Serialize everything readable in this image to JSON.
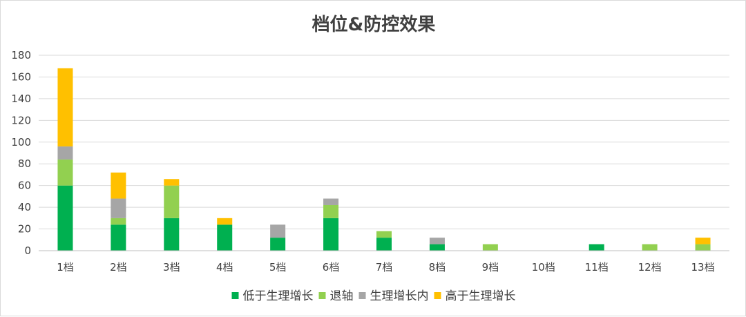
{
  "chart_data": {
    "type": "bar",
    "stacked": true,
    "title": "档位&防控效果",
    "xlabel": "",
    "ylabel": "",
    "ylim": [
      0,
      180
    ],
    "yticks": [
      0,
      20,
      40,
      60,
      80,
      100,
      120,
      140,
      160,
      180
    ],
    "grid": true,
    "legend_position": "bottom",
    "categories": [
      "1档",
      "2档",
      "3档",
      "4档",
      "5档",
      "6档",
      "7档",
      "8档",
      "9档",
      "10档",
      "11档",
      "12档",
      "13档"
    ],
    "series": [
      {
        "name": "低于生理增长",
        "color": "#00b050",
        "values": [
          60,
          24,
          30,
          24,
          12,
          30,
          12,
          6,
          0,
          0,
          6,
          0,
          0
        ]
      },
      {
        "name": "退轴",
        "color": "#92d050",
        "values": [
          24,
          6,
          30,
          0,
          0,
          12,
          6,
          0,
          6,
          0,
          0,
          6,
          6
        ]
      },
      {
        "name": "生理增长内",
        "color": "#a6a6a6",
        "values": [
          12,
          18,
          0,
          0,
          12,
          6,
          0,
          6,
          0,
          0,
          0,
          0,
          0
        ]
      },
      {
        "name": "高于生理增长",
        "color": "#ffc000",
        "values": [
          72,
          24,
          6,
          6,
          0,
          0,
          0,
          0,
          0,
          0,
          0,
          0,
          6
        ]
      }
    ]
  }
}
